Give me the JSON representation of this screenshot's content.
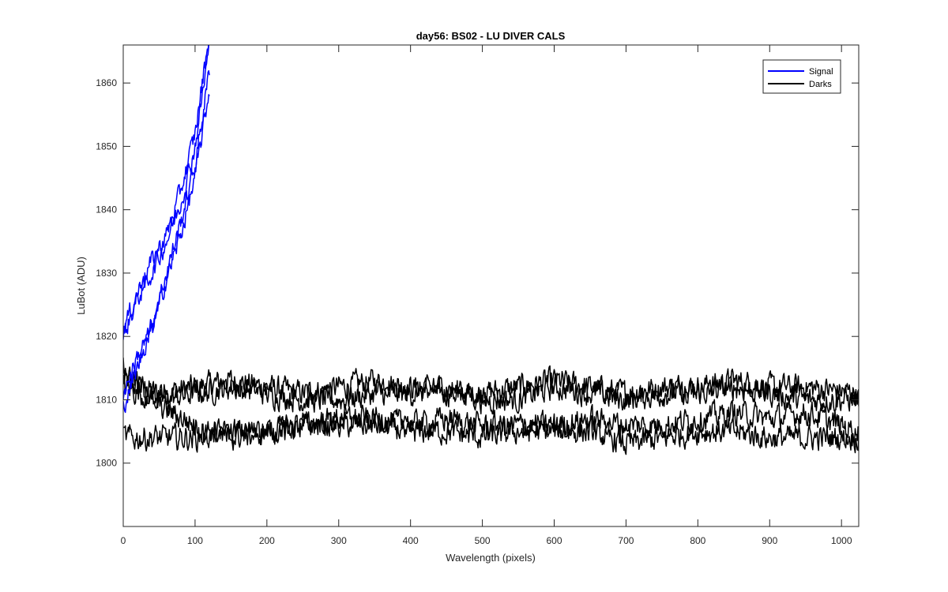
{
  "chart_data": {
    "type": "line",
    "title": "day56: BS02 - LU DIVER CALS",
    "xlabel": "Wavelength (pixels)",
    "ylabel": "LuBot (ADU)",
    "xlim": [
      0,
      1024
    ],
    "ylim": [
      1790,
      1866
    ],
    "xticks": [
      0,
      100,
      200,
      300,
      400,
      500,
      600,
      700,
      800,
      900,
      1000
    ],
    "yticks": [
      1800,
      1810,
      1820,
      1830,
      1840,
      1850,
      1860
    ],
    "grid": false,
    "legend": {
      "position": "top-right",
      "entries": [
        "Signal",
        "Darks"
      ]
    },
    "colors": {
      "Signal": "#0000ff",
      "Darks": "#000000"
    },
    "series": [
      {
        "name": "Signal",
        "color": "#0000ff",
        "x": [
          0,
          20,
          40,
          60,
          80,
          100,
          120
        ],
        "y": [
          1821,
          1827,
          1832,
          1836,
          1843,
          1852,
          1868
        ]
      },
      {
        "name": "Signal",
        "color": "#0000ff",
        "x": [
          0,
          20,
          40,
          60,
          80,
          100,
          120
        ],
        "y": [
          1820,
          1826,
          1830,
          1835,
          1841,
          1850,
          1866
        ]
      },
      {
        "name": "Signal",
        "color": "#0000ff",
        "x": [
          0,
          20,
          40,
          60,
          80,
          100,
          120
        ],
        "y": [
          1809,
          1815,
          1822,
          1830,
          1838,
          1847,
          1862
        ]
      },
      {
        "name": "Signal",
        "color": "#0000ff",
        "x": [
          0,
          20,
          40,
          60,
          80,
          100,
          120
        ],
        "y": [
          1811,
          1817,
          1821,
          1829,
          1836,
          1845,
          1859
        ]
      },
      {
        "name": "Darks",
        "color": "#000000",
        "x": [
          0,
          50,
          100,
          150,
          200,
          250,
          300,
          350,
          400,
          450,
          500,
          550,
          600,
          650,
          700,
          750,
          800,
          850,
          900,
          950,
          1024
        ],
        "y": [
          1813,
          1811,
          1812,
          1813,
          1812,
          1811,
          1812,
          1813,
          1812,
          1811,
          1811,
          1812,
          1813,
          1812,
          1811,
          1812,
          1812,
          1813,
          1812,
          1812,
          1811
        ]
      },
      {
        "name": "Darks",
        "color": "#000000",
        "x": [
          0,
          50,
          100,
          150,
          200,
          250,
          300,
          350,
          400,
          450,
          500,
          550,
          600,
          650,
          700,
          750,
          800,
          850,
          900,
          950,
          1024
        ],
        "y": [
          1812,
          1810,
          1811,
          1812,
          1811,
          1810,
          1810,
          1811,
          1811,
          1812,
          1810,
          1810,
          1812,
          1811,
          1810,
          1811,
          1811,
          1812,
          1811,
          1810,
          1810
        ]
      },
      {
        "name": "Darks",
        "color": "#000000",
        "x": [
          0,
          50,
          100,
          150,
          200,
          250,
          300,
          350,
          400,
          450,
          500,
          550,
          600,
          650,
          700,
          750,
          800,
          850,
          900,
          950,
          1024
        ],
        "y": [
          1804,
          1804,
          1804,
          1805,
          1805,
          1806,
          1806,
          1806,
          1805,
          1805,
          1804,
          1805,
          1805,
          1805,
          1803,
          1804,
          1805,
          1805,
          1804,
          1804,
          1804
        ]
      },
      {
        "name": "Darks",
        "color": "#000000",
        "x": [
          0,
          50,
          100,
          150,
          200,
          250,
          300,
          350,
          400,
          450,
          500,
          550,
          600,
          650,
          700,
          750,
          800,
          850,
          900,
          950,
          1024
        ],
        "y": [
          1815,
          1809,
          1806,
          1804,
          1805,
          1806,
          1807,
          1807,
          1806,
          1807,
          1806,
          1806,
          1806,
          1807,
          1806,
          1806,
          1807,
          1808,
          1807,
          1808,
          1805
        ]
      }
    ]
  }
}
